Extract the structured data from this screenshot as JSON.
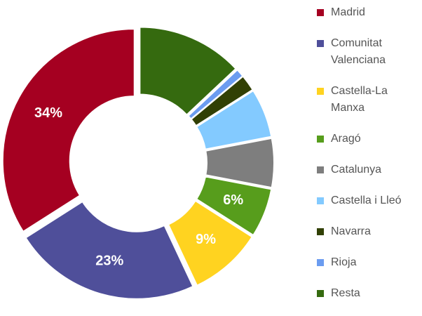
{
  "chart_data": {
    "type": "donut",
    "categories": [
      "Madrid",
      "Comunitat Valenciana",
      "Castella-La Manxa",
      "Aragó",
      "Catalunya",
      "Castella i Lleó",
      "Navarra",
      "Rioja",
      "Resta"
    ],
    "values": [
      34,
      23,
      9,
      6,
      6,
      6,
      2,
      1,
      13
    ],
    "value_labels": [
      "34%",
      "23%",
      "9%",
      "6%",
      null,
      null,
      null,
      null,
      null
    ],
    "colors": [
      "#a50021",
      "#4f4f9a",
      "#ffd320",
      "#579d1c",
      "#7e7e7e",
      "#83caff",
      "#314004",
      "#6b9cf0",
      "#356a0f"
    ],
    "legend": "right"
  }
}
